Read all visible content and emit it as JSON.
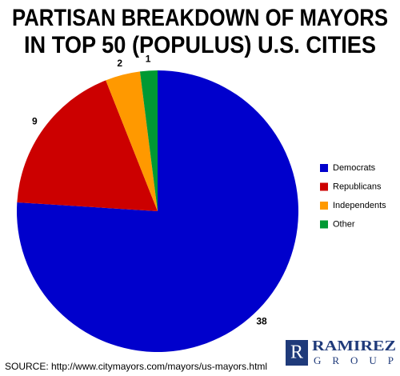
{
  "chart_data": {
    "type": "pie",
    "title": [
      "PARTISAN BREAKDOWN OF MAYORS",
      "IN TOP 50 (POPULUS) U.S. CITIES"
    ],
    "categories": [
      "Democrats",
      "Republicans",
      "Independents",
      "Other"
    ],
    "values": [
      38,
      9,
      2,
      1
    ],
    "colors": [
      "#0000cc",
      "#cc0000",
      "#ff9900",
      "#009933"
    ],
    "legend": "right",
    "source": "SOURCE: http://www.citymayors.com/mayors/us-mayors.html",
    "logo": {
      "letter": "R",
      "lines": [
        "RAMIREZ",
        "GROUP"
      ]
    }
  }
}
